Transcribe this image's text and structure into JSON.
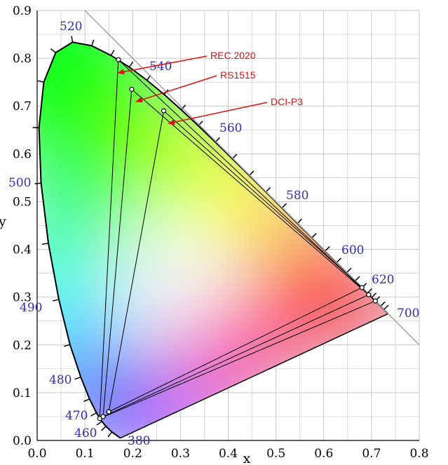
{
  "chart_data": {
    "type": "scatter",
    "title": "",
    "xlabel": "x",
    "ylabel": "y",
    "xlim": [
      0.0,
      0.8
    ],
    "ylim": [
      0.0,
      0.9
    ],
    "xticks": [
      "0.0",
      "0.1",
      "0.2",
      "0.3",
      "0.4",
      "0.5",
      "0.6",
      "0.7",
      "0.8"
    ],
    "yticks": [
      "0.0",
      "0.1",
      "0.2",
      "0.3",
      "0.4",
      "0.5",
      "0.6",
      "0.7",
      "0.8",
      "0.9"
    ],
    "grid": true,
    "spectral_locus": [
      {
        "nm": 380,
        "x": 0.1741,
        "y": 0.005
      },
      {
        "nm": 450,
        "x": 0.1566,
        "y": 0.0177
      },
      {
        "nm": 460,
        "x": 0.144,
        "y": 0.0297
      },
      {
        "nm": 465,
        "x": 0.1355,
        "y": 0.0399
      },
      {
        "nm": 470,
        "x": 0.1241,
        "y": 0.0578
      },
      {
        "nm": 475,
        "x": 0.1096,
        "y": 0.0868
      },
      {
        "nm": 480,
        "x": 0.0913,
        "y": 0.1327
      },
      {
        "nm": 485,
        "x": 0.0687,
        "y": 0.2007
      },
      {
        "nm": 490,
        "x": 0.0454,
        "y": 0.295
      },
      {
        "nm": 495,
        "x": 0.0235,
        "y": 0.4127
      },
      {
        "nm": 500,
        "x": 0.0082,
        "y": 0.5384
      },
      {
        "nm": 505,
        "x": 0.0039,
        "y": 0.6548
      },
      {
        "nm": 510,
        "x": 0.0139,
        "y": 0.7502
      },
      {
        "nm": 515,
        "x": 0.0389,
        "y": 0.812
      },
      {
        "nm": 520,
        "x": 0.0743,
        "y": 0.8338
      },
      {
        "nm": 525,
        "x": 0.1142,
        "y": 0.8262
      },
      {
        "nm": 530,
        "x": 0.1547,
        "y": 0.8059
      },
      {
        "nm": 535,
        "x": 0.1929,
        "y": 0.7816
      },
      {
        "nm": 540,
        "x": 0.2296,
        "y": 0.7543
      },
      {
        "nm": 545,
        "x": 0.2658,
        "y": 0.7243
      },
      {
        "nm": 550,
        "x": 0.3016,
        "y": 0.6923
      },
      {
        "nm": 555,
        "x": 0.3373,
        "y": 0.6589
      },
      {
        "nm": 560,
        "x": 0.3731,
        "y": 0.6245
      },
      {
        "nm": 565,
        "x": 0.4087,
        "y": 0.5896
      },
      {
        "nm": 570,
        "x": 0.4441,
        "y": 0.5547
      },
      {
        "nm": 575,
        "x": 0.4788,
        "y": 0.5202
      },
      {
        "nm": 580,
        "x": 0.5125,
        "y": 0.4866
      },
      {
        "nm": 585,
        "x": 0.5448,
        "y": 0.4544
      },
      {
        "nm": 590,
        "x": 0.5752,
        "y": 0.4242
      },
      {
        "nm": 595,
        "x": 0.6029,
        "y": 0.3965
      },
      {
        "nm": 600,
        "x": 0.627,
        "y": 0.3725
      },
      {
        "nm": 605,
        "x": 0.6482,
        "y": 0.3514
      },
      {
        "nm": 610,
        "x": 0.6658,
        "y": 0.334
      },
      {
        "nm": 615,
        "x": 0.6801,
        "y": 0.3197
      },
      {
        "nm": 620,
        "x": 0.6915,
        "y": 0.3083
      },
      {
        "nm": 625,
        "x": 0.7006,
        "y": 0.2993
      },
      {
        "nm": 630,
        "x": 0.7079,
        "y": 0.292
      },
      {
        "nm": 640,
        "x": 0.719,
        "y": 0.2809
      },
      {
        "nm": 650,
        "x": 0.726,
        "y": 0.274
      },
      {
        "nm": 700,
        "x": 0.7347,
        "y": 0.2653
      }
    ],
    "wavelength_labels": [
      "380",
      "460",
      "470",
      "480",
      "490",
      "500",
      "520",
      "540",
      "560",
      "580",
      "600",
      "620",
      "700"
    ],
    "series": [
      {
        "name": "REC.2020",
        "points": [
          {
            "x": 0.708,
            "y": 0.292
          },
          {
            "x": 0.17,
            "y": 0.797
          },
          {
            "x": 0.131,
            "y": 0.046
          }
        ]
      },
      {
        "name": "RS1515",
        "points": [
          {
            "x": 0.694,
            "y": 0.305
          },
          {
            "x": 0.198,
            "y": 0.735
          },
          {
            "x": 0.138,
            "y": 0.05
          }
        ]
      },
      {
        "name": "DCI-P3",
        "points": [
          {
            "x": 0.68,
            "y": 0.32
          },
          {
            "x": 0.265,
            "y": 0.69
          },
          {
            "x": 0.15,
            "y": 0.06
          }
        ]
      }
    ],
    "colors": {
      "annotation": "#e01010",
      "wavelength": "#2f2fb0",
      "grid": "#c8c8c8"
    }
  }
}
